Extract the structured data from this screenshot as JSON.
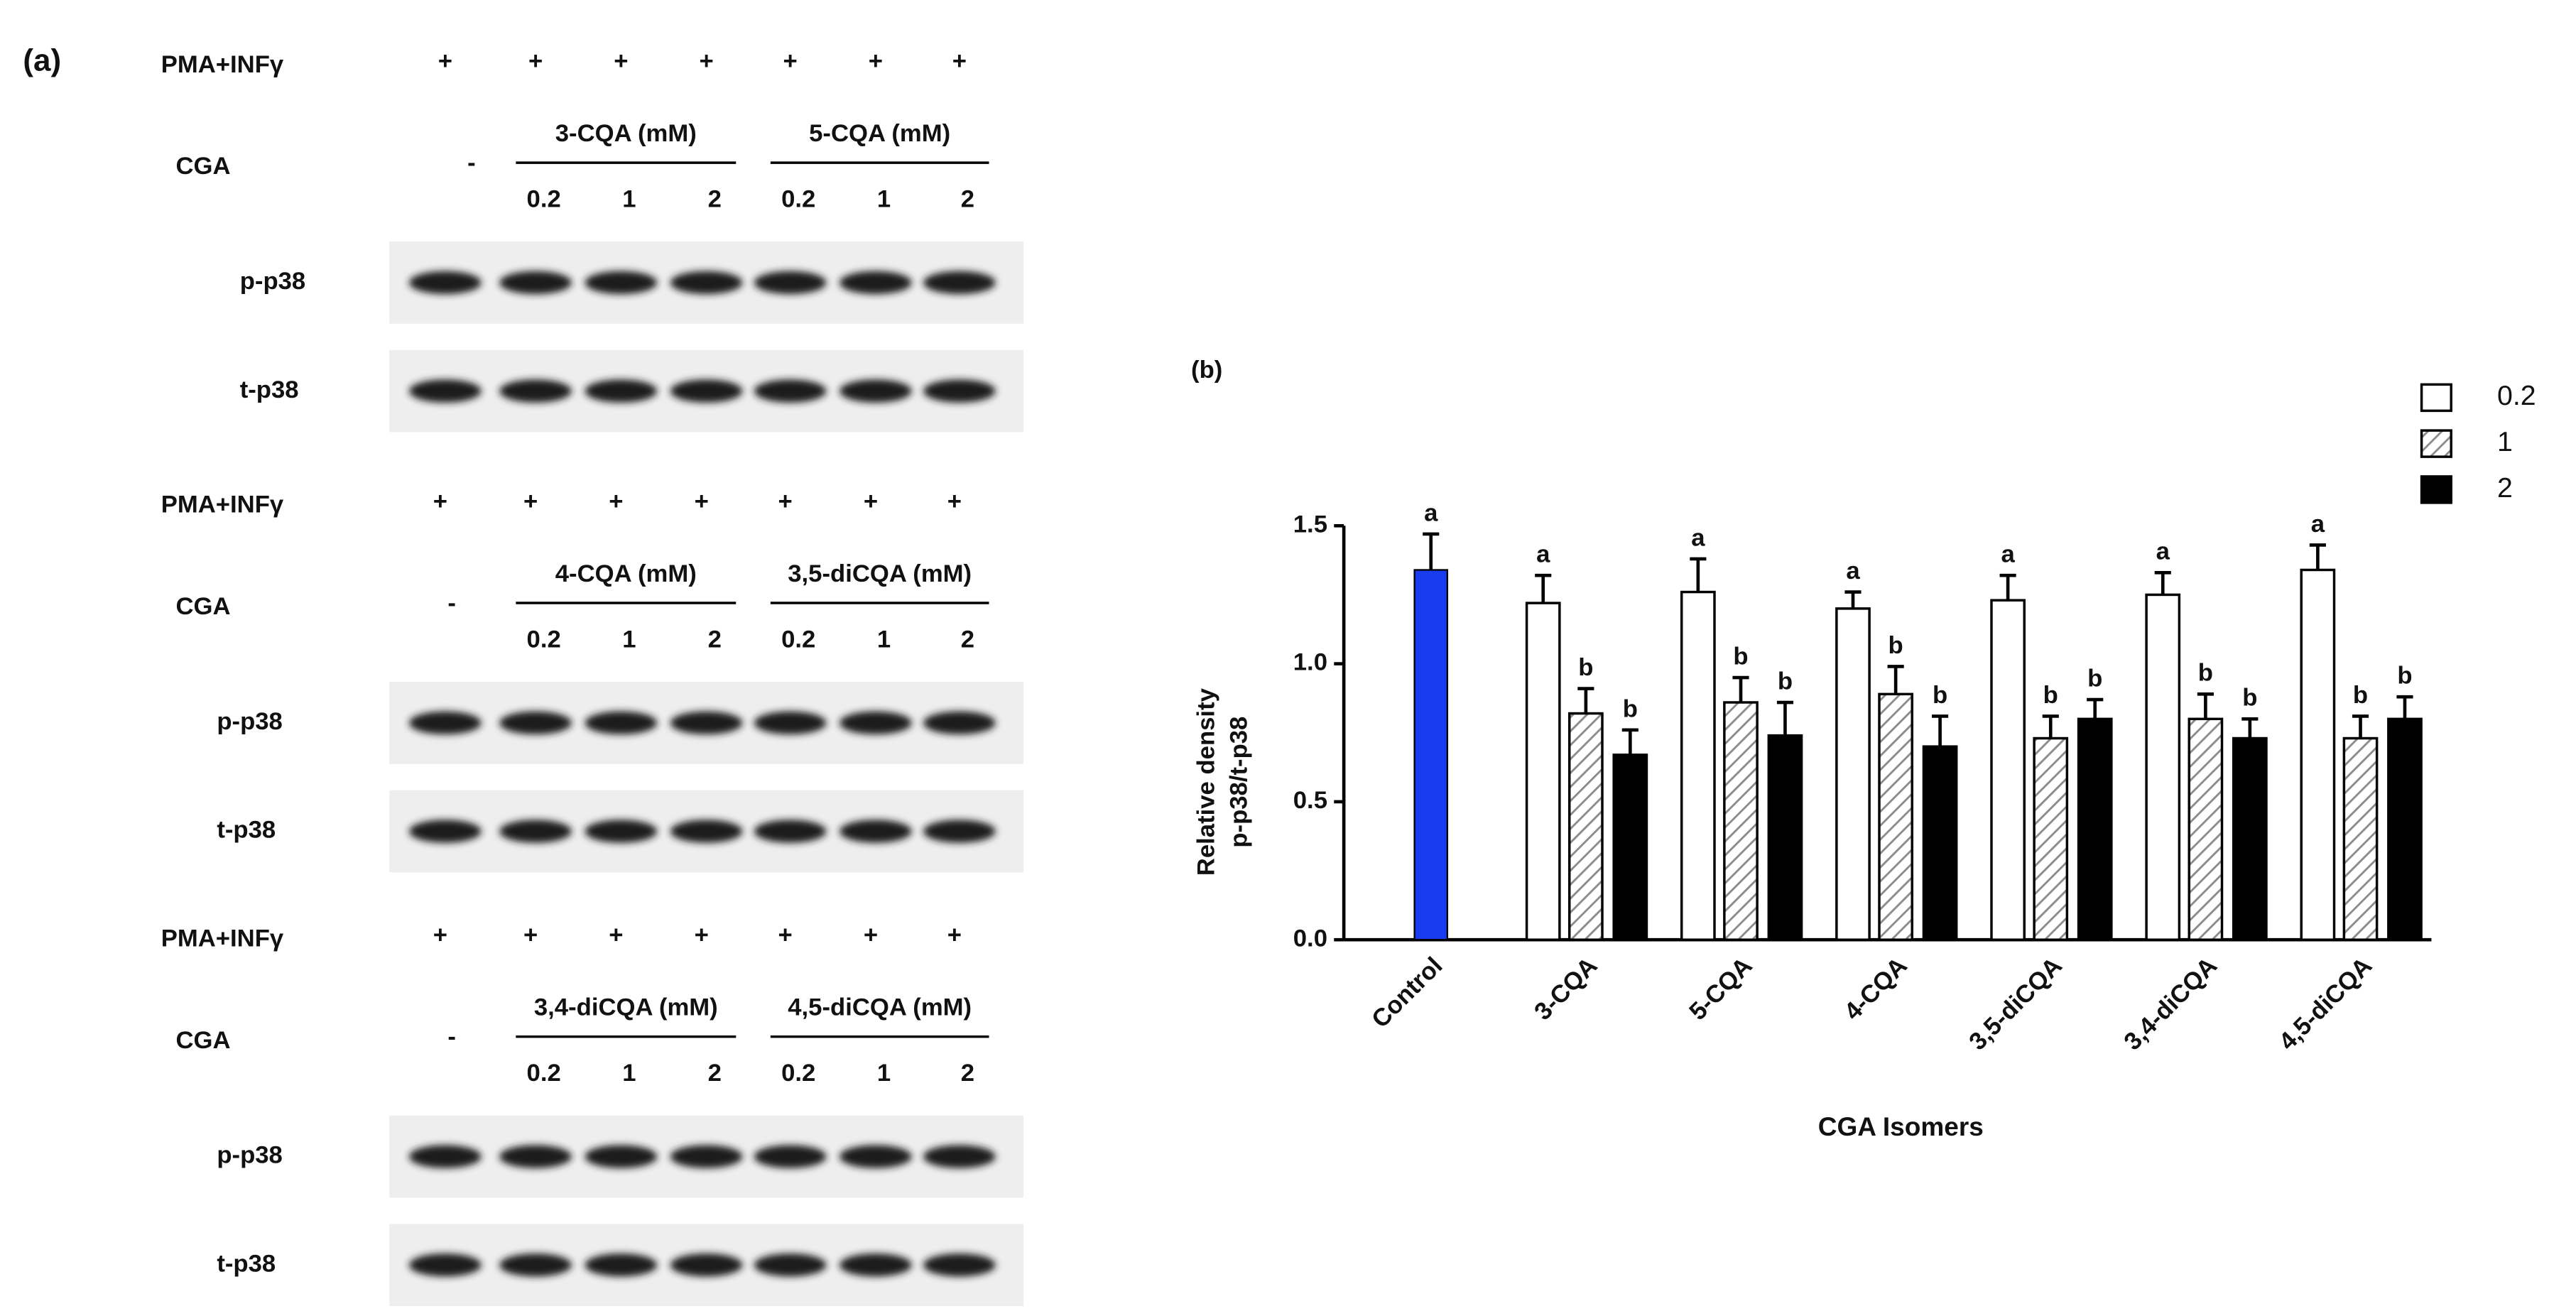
{
  "panel_a": {
    "label": "(a)",
    "blocks": [
      {
        "treatment": "PMA+INFγ",
        "plus": [
          "+",
          "+",
          "+",
          "+",
          "+",
          "+",
          "+"
        ],
        "cga": "CGA",
        "control": "-",
        "groups": [
          {
            "name": "3-CQA (mM)",
            "doses": [
              "0.2",
              "1",
              "2"
            ]
          },
          {
            "name": "5-CQA (mM)",
            "doses": [
              "0.2",
              "1",
              "2"
            ]
          }
        ],
        "rows": [
          "p-p38",
          "t-p38"
        ]
      },
      {
        "treatment": "PMA+INFγ",
        "plus": [
          "+",
          "+",
          "+",
          "+",
          "+",
          "+",
          "+"
        ],
        "cga": "CGA",
        "control": "-",
        "groups": [
          {
            "name": "4-CQA (mM)",
            "doses": [
              "0.2",
              "1",
              "2"
            ]
          },
          {
            "name": "3,5-diCQA (mM)",
            "doses": [
              "0.2",
              "1",
              "2"
            ]
          }
        ],
        "rows": [
          "p-p38",
          "t-p38"
        ]
      },
      {
        "treatment": "PMA+INFγ",
        "plus": [
          "+",
          "+",
          "+",
          "+",
          "+",
          "+",
          "+"
        ],
        "cga": "CGA",
        "control": "-",
        "groups": [
          {
            "name": "3,4-diCQA (mM)",
            "doses": [
              "0.2",
              "1",
              "2"
            ]
          },
          {
            "name": "4,5-diCQA (mM)",
            "doses": [
              "0.2",
              "1",
              "2"
            ]
          }
        ],
        "rows": [
          "p-p38",
          "t-p38"
        ]
      }
    ]
  },
  "chart_data": {
    "type": "bar",
    "panel_label": "(b)",
    "xlabel": "CGA Isomers",
    "ylabel": [
      "Relative density",
      "p-p38/t-p38"
    ],
    "categories": [
      "Control",
      "3-CQA",
      "5-CQA",
      "4-CQA",
      "3,5-diCQA",
      "3,4-diCQA",
      "4,5-diCQA"
    ],
    "control": {
      "value": 1.34,
      "error": 0.13,
      "letter": "a",
      "color": "#1a3cf0"
    },
    "series": [
      {
        "name": "0.2",
        "color": "#ffffff",
        "values": [
          null,
          1.22,
          1.26,
          1.2,
          1.23,
          1.25,
          1.34
        ],
        "errors": [
          null,
          0.1,
          0.12,
          0.06,
          0.09,
          0.08,
          0.09
        ],
        "letters": [
          null,
          "a",
          "a",
          "a",
          "a",
          "a",
          "a"
        ]
      },
      {
        "name": "1",
        "color": "#8c8c8c",
        "pattern": "hatch",
        "values": [
          null,
          0.82,
          0.86,
          0.89,
          0.73,
          0.8,
          0.73
        ],
        "errors": [
          null,
          0.09,
          0.09,
          0.1,
          0.08,
          0.09,
          0.08
        ],
        "letters": [
          null,
          "b",
          "b",
          "b",
          "b",
          "b",
          "b"
        ]
      },
      {
        "name": "2",
        "color": "#000000",
        "values": [
          null,
          0.67,
          0.74,
          0.7,
          0.8,
          0.73,
          0.8
        ],
        "errors": [
          null,
          0.09,
          0.12,
          0.11,
          0.07,
          0.07,
          0.08
        ],
        "letters": [
          null,
          "b",
          "b",
          "b",
          "b",
          "b",
          "b"
        ]
      }
    ],
    "ylim": [
      0,
      1.5
    ],
    "yticks": [
      {
        "value": 0,
        "label": "0.0"
      },
      0.5,
      {
        "value": 1,
        "label": "1.0"
      },
      1.5
    ],
    "legend": "upper right",
    "grid": false
  }
}
